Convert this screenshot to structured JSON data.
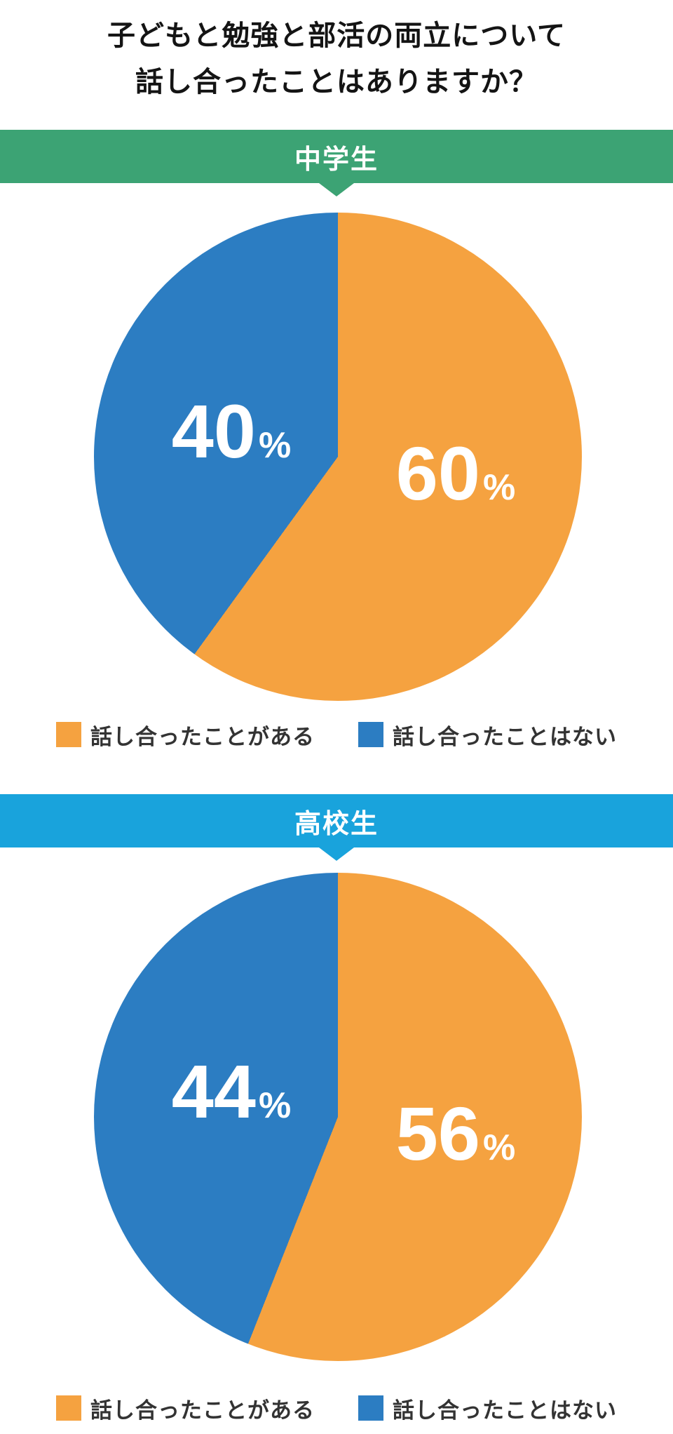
{
  "title": {
    "line1": "子どもと勉強と部活の両立について",
    "line2": "話し合ったことはありますか？",
    "color": "#141414"
  },
  "percent_sign": "%",
  "colors": {
    "agree_orange": "#F5A240",
    "disagree_blue": "#2C7DC2",
    "banner_green": "#3CA374",
    "banner_lightblue": "#19A3DC",
    "legend_text": "#333333",
    "background": "#ffffff",
    "slice_label_text": "#ffffff"
  },
  "sections": [
    {
      "banner": {
        "label": "中学生",
        "color": "#3CA374",
        "text_color": "#ffffff"
      },
      "pie": {
        "slices": [
          {
            "name": "話し合ったことがある",
            "value": 60,
            "display": "60",
            "color": "#F5A240"
          },
          {
            "name": "話し合ったことはない",
            "value": 40,
            "display": "40",
            "color": "#2C7DC2"
          }
        ]
      },
      "legend": [
        {
          "label": "話し合ったことがある",
          "color": "#F5A240"
        },
        {
          "label": "話し合ったことはない",
          "color": "#2C7DC2"
        }
      ]
    },
    {
      "banner": {
        "label": "高校生",
        "color": "#19A3DC",
        "text_color": "#ffffff"
      },
      "pie": {
        "slices": [
          {
            "name": "話し合ったことがある",
            "value": 56,
            "display": "56",
            "color": "#F5A240"
          },
          {
            "name": "話し合ったことはない",
            "value": 44,
            "display": "44",
            "color": "#2C7DC2"
          }
        ]
      },
      "legend": [
        {
          "label": "話し合ったことがある",
          "color": "#F5A240"
        },
        {
          "label": "話し合ったことはない",
          "color": "#2C7DC2"
        }
      ]
    }
  ],
  "chart_data": [
    {
      "type": "pie",
      "title": "中学生",
      "labels": [
        "話し合ったことがある",
        "話し合ったことはない"
      ],
      "values": [
        60,
        40
      ],
      "colors": [
        "#F5A240",
        "#2C7DC2"
      ],
      "unit": "%",
      "start_angle": "top",
      "direction": "clockwise",
      "legend_position": "bottom"
    },
    {
      "type": "pie",
      "title": "高校生",
      "labels": [
        "話し合ったことがある",
        "話し合ったことはない"
      ],
      "values": [
        56,
        44
      ],
      "colors": [
        "#F5A240",
        "#2C7DC2"
      ],
      "unit": "%",
      "start_angle": "top",
      "direction": "clockwise",
      "legend_position": "bottom"
    }
  ]
}
